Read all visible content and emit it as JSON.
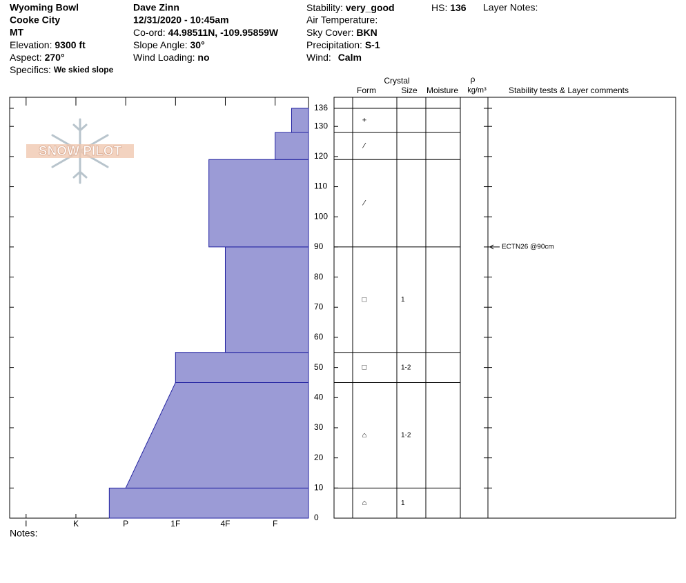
{
  "header": {
    "location": "Wyoming Bowl",
    "area": "Cooke City",
    "state": "MT",
    "elevation_label": "Elevation:",
    "elevation": "9300 ft",
    "aspect_label": "Aspect:",
    "aspect": "270°",
    "specifics_label": "Specifics:",
    "specifics": "We skied slope",
    "observer": "Dave Zinn",
    "datetime": "12/31/2020 - 10:45am",
    "coord_label": "Co-ord:",
    "coord": "44.98511N, -109.95859W",
    "slope_label": "Slope Angle:",
    "slope": "30°",
    "wind_loading_label": "Wind Loading:",
    "wind_loading": "no",
    "stability_label": "Stability:",
    "stability": "very_good",
    "hs_label": "HS:",
    "hs": "136",
    "layer_notes_label": "Layer Notes:",
    "air_temp_label": "Air Temperature:",
    "sky_label": "Sky Cover:",
    "sky": "BKN",
    "precip_label": "Precipitation:",
    "precip": "S-1",
    "wind_label": "Wind:",
    "wind": "Calm"
  },
  "logo": "SNOW PILOT",
  "notes_label": "Notes:",
  "table": {
    "crystal": "Crystal",
    "form": "Form",
    "size": "Size",
    "moisture": "Moisture",
    "rho": "ρ",
    "density_unit": "kg/m³",
    "comments": "Stability tests & Layer comments"
  },
  "chart_data": {
    "type": "hardness_profile",
    "color": "#9b9bd6",
    "edge_color": "#2020a0",
    "xlim": [
      6.33,
      0.33
    ],
    "xticks": [
      {
        "value": 6,
        "label": "I"
      },
      {
        "value": 5,
        "label": "K"
      },
      {
        "value": 4,
        "label": "P"
      },
      {
        "value": 3,
        "label": "1F"
      },
      {
        "value": 2,
        "label": "4F"
      },
      {
        "value": 1,
        "label": "F"
      }
    ],
    "ylim": [
      0,
      136
    ],
    "yticks": [
      0,
      10,
      20,
      30,
      40,
      50,
      60,
      70,
      80,
      90,
      100,
      110,
      120,
      130,
      136
    ],
    "layers": [
      {
        "bottom": 0,
        "top": 10,
        "hardness_bottom": 4.33,
        "hardness_top": 4.33,
        "form": "⌂",
        "size": "1"
      },
      {
        "bottom": 10,
        "top": 45,
        "hardness_bottom": 4,
        "hardness_top": 3,
        "form": "⌂",
        "size": "1-2"
      },
      {
        "bottom": 45,
        "top": 55,
        "hardness_bottom": 3,
        "hardness_top": 3,
        "form": "□",
        "size": "1-2"
      },
      {
        "bottom": 55,
        "top": 90,
        "hardness_bottom": 2,
        "hardness_top": 2,
        "form": "□",
        "size": "1"
      },
      {
        "bottom": 90,
        "top": 119,
        "hardness_bottom": 2.33,
        "hardness_top": 2.33,
        "form": "⁄"
      },
      {
        "bottom": 119,
        "top": 128,
        "hardness_bottom": 1,
        "hardness_top": 1,
        "form": "⁄"
      },
      {
        "bottom": 128,
        "top": 136,
        "hardness_bottom": 0.67,
        "hardness_top": 0.67,
        "form": "+"
      }
    ],
    "tests": [
      {
        "depth": 90,
        "label": "ECTN26 @90cm"
      }
    ]
  }
}
